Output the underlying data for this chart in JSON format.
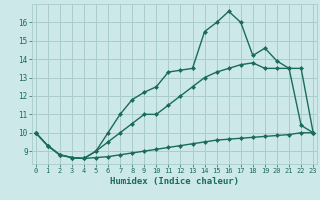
{
  "xlabel": "Humidex (Indice chaleur)",
  "bg_color": "#cce8e8",
  "grid_color": "#aacccc",
  "line_color": "#1a6b5a",
  "line1_x": [
    0,
    1,
    2,
    3,
    4,
    5,
    6,
    7,
    8,
    9,
    10,
    11,
    12,
    13,
    14,
    15,
    16,
    17,
    18,
    19,
    20,
    21,
    22,
    23
  ],
  "line1_y": [
    10.0,
    9.3,
    8.8,
    8.65,
    8.6,
    9.0,
    10.0,
    11.0,
    11.8,
    12.2,
    12.5,
    13.3,
    13.4,
    13.5,
    15.5,
    16.0,
    16.6,
    16.0,
    14.2,
    14.6,
    13.9,
    13.5,
    10.4,
    10.0
  ],
  "line2_x": [
    0,
    1,
    2,
    3,
    4,
    5,
    6,
    7,
    8,
    9,
    10,
    11,
    12,
    13,
    14,
    15,
    16,
    17,
    18,
    19,
    20,
    21,
    22,
    23
  ],
  "line2_y": [
    10.0,
    9.3,
    8.8,
    8.65,
    8.6,
    9.0,
    9.5,
    10.0,
    10.5,
    11.0,
    11.0,
    11.5,
    12.0,
    12.5,
    13.0,
    13.3,
    13.5,
    13.7,
    13.8,
    13.5,
    13.5,
    13.5,
    13.5,
    10.0
  ],
  "line3_x": [
    0,
    1,
    2,
    3,
    4,
    5,
    6,
    7,
    8,
    9,
    10,
    11,
    12,
    13,
    14,
    15,
    16,
    17,
    18,
    19,
    20,
    21,
    22,
    23
  ],
  "line3_y": [
    10.0,
    9.3,
    8.8,
    8.65,
    8.6,
    8.65,
    8.7,
    8.8,
    8.9,
    9.0,
    9.1,
    9.2,
    9.3,
    9.4,
    9.5,
    9.6,
    9.65,
    9.7,
    9.75,
    9.8,
    9.85,
    9.9,
    10.0,
    10.0
  ],
  "xlim": [
    -0.3,
    23.3
  ],
  "ylim": [
    8.3,
    17.0
  ],
  "yticks": [
    9,
    10,
    11,
    12,
    13,
    14,
    15,
    16
  ],
  "xticks": [
    0,
    1,
    2,
    3,
    4,
    5,
    6,
    7,
    8,
    9,
    10,
    11,
    12,
    13,
    14,
    15,
    16,
    17,
    18,
    19,
    20,
    21,
    22,
    23
  ]
}
